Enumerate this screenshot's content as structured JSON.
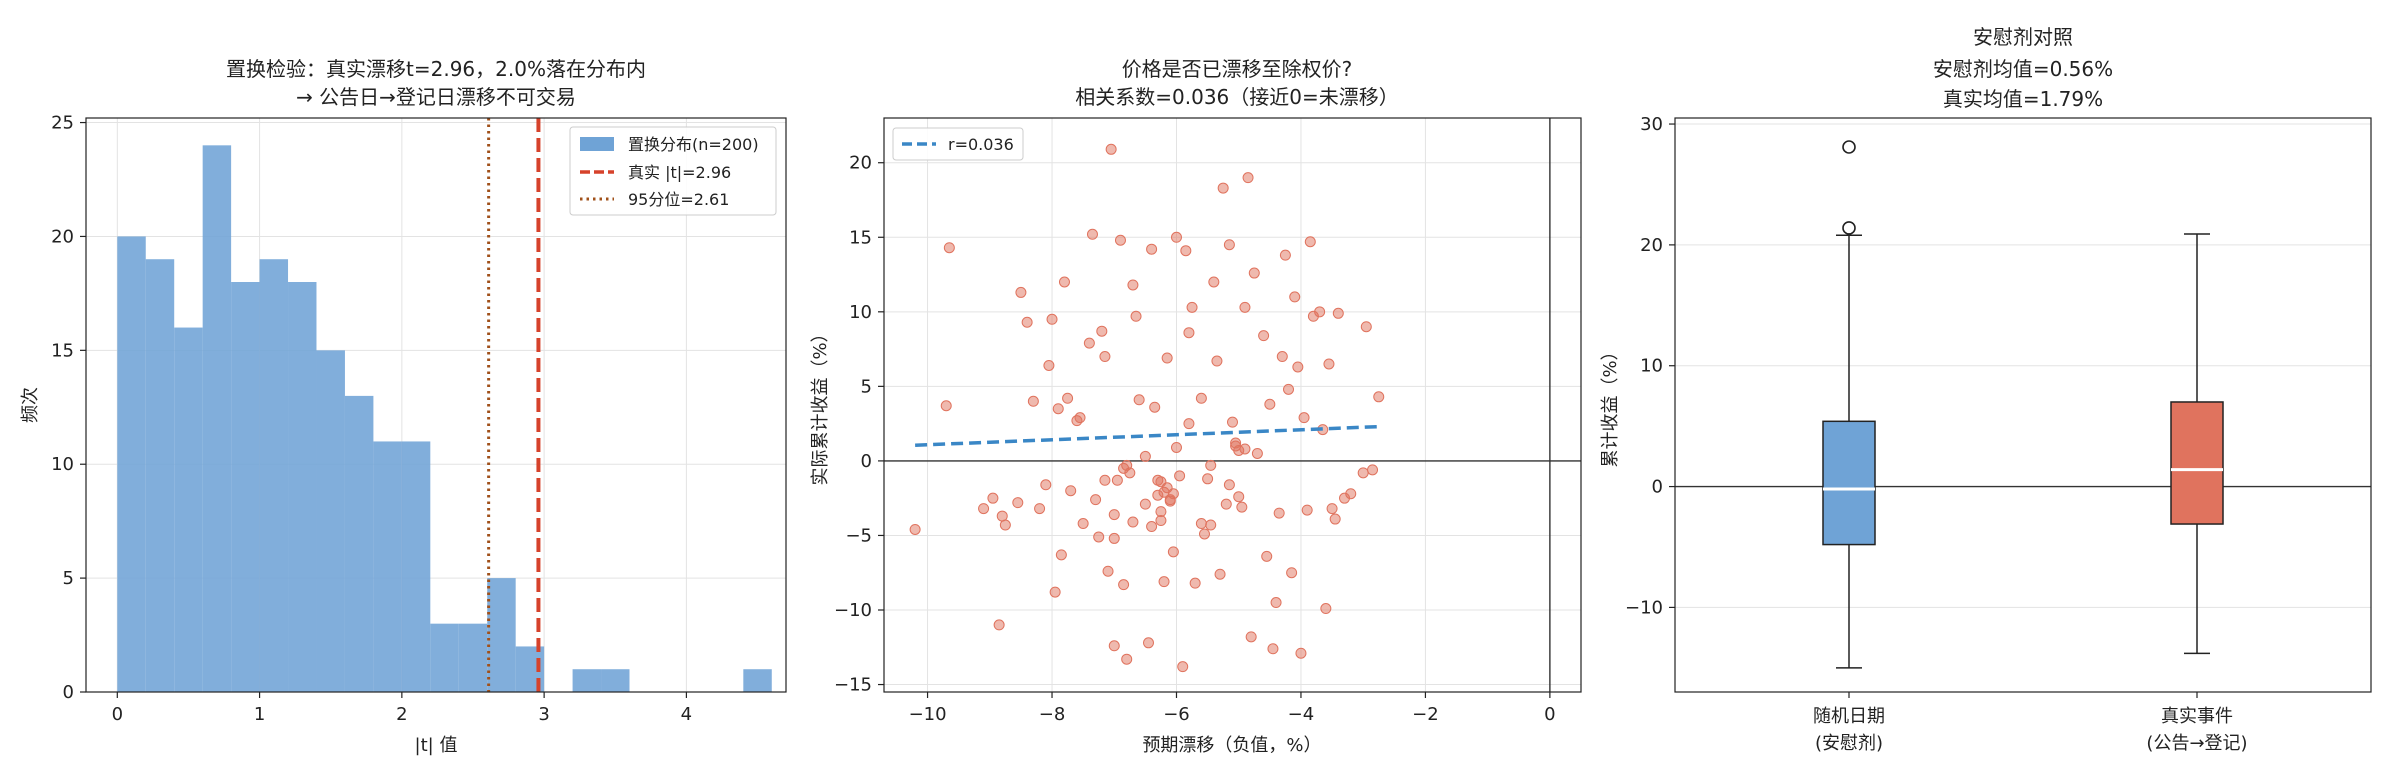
{
  "chart_data": [
    {
      "type": "bar",
      "title": "置换检验：真实漂移t=2.96，2.0%落在分布内",
      "subtitle": "→ 公告日→登记日漂移不可交易",
      "xlabel": "|t| 值",
      "ylabel": "频次",
      "xlim": [
        -0.22,
        4.7
      ],
      "ylim": [
        0,
        25.2
      ],
      "xticks": [
        0,
        1,
        2,
        3,
        4
      ],
      "yticks": [
        0,
        5,
        10,
        15,
        20,
        25
      ],
      "grid": true,
      "legend_position": "top-right",
      "bin_width": 0.2,
      "bin_start": 0.0,
      "counts": [
        20,
        19,
        16,
        24,
        18,
        19,
        18,
        15,
        13,
        11,
        11,
        3,
        3,
        5,
        2,
        0,
        1,
        1,
        0,
        0,
        0,
        0,
        1
      ],
      "bar_color": "#6fa3d6",
      "bar_label": "置换分布(n=200)",
      "lines": [
        {
          "label": "真实 |t|=2.96",
          "x": 2.96,
          "color": "#d6422b",
          "style": "dashed"
        },
        {
          "label": "95分位=2.61",
          "x": 2.61,
          "color": "#a0501a",
          "style": "dotted"
        }
      ]
    },
    {
      "type": "scatter",
      "title": "价格是否已漂移至除权价?",
      "subtitle": "相关系数=0.036（接近0=未漂移）",
      "xlabel": "预期漂移（负值，%）",
      "ylabel": "实际累计收益（%）",
      "xlim": [
        -10.7,
        0.5
      ],
      "ylim": [
        -15.5,
        23
      ],
      "xticks": [
        -10,
        -8,
        -6,
        -4,
        -2,
        0
      ],
      "yticks": [
        -15,
        -10,
        -5,
        0,
        5,
        10,
        15,
        20
      ],
      "grid": true,
      "legend_position": "top-left",
      "point_color": "#e0735e",
      "points": [
        [
          -10.2,
          -4.6
        ],
        [
          -9.7,
          3.7
        ],
        [
          -9.65,
          14.3
        ],
        [
          -9.1,
          -3.2
        ],
        [
          -8.95,
          -2.5
        ],
        [
          -8.85,
          -11.0
        ],
        [
          -8.8,
          -3.7
        ],
        [
          -8.75,
          -4.3
        ],
        [
          -8.5,
          11.3
        ],
        [
          -8.4,
          9.3
        ],
        [
          -8.3,
          4.0
        ],
        [
          -8.2,
          -3.2
        ],
        [
          -8.1,
          -1.6
        ],
        [
          -8.05,
          6.4
        ],
        [
          -8.0,
          9.5
        ],
        [
          -7.95,
          -8.8
        ],
        [
          -7.9,
          3.5
        ],
        [
          -7.85,
          -6.3
        ],
        [
          -7.8,
          12.0
        ],
        [
          -7.7,
          -2.0
        ],
        [
          -7.6,
          2.7
        ],
        [
          -7.55,
          2.9
        ],
        [
          -7.5,
          -4.2
        ],
        [
          -7.4,
          7.9
        ],
        [
          -7.35,
          15.2
        ],
        [
          -7.3,
          -2.6
        ],
        [
          -7.25,
          -5.1
        ],
        [
          -7.2,
          8.7
        ],
        [
          -7.15,
          7.0
        ],
        [
          -7.1,
          -7.4
        ],
        [
          -7.05,
          20.9
        ],
        [
          -7.0,
          -12.4
        ],
        [
          -6.95,
          -1.3
        ],
        [
          -6.9,
          14.8
        ],
        [
          -6.85,
          -8.3
        ],
        [
          -6.8,
          -13.3
        ],
        [
          -6.75,
          -0.8
        ],
        [
          -6.7,
          11.8
        ],
        [
          -6.65,
          9.7
        ],
        [
          -6.6,
          4.1
        ],
        [
          -6.5,
          -2.9
        ],
        [
          -6.45,
          -12.2
        ],
        [
          -6.4,
          14.2
        ],
        [
          -6.35,
          3.6
        ],
        [
          -6.3,
          -1.3
        ],
        [
          -6.25,
          -4.0
        ],
        [
          -6.2,
          -8.1
        ],
        [
          -6.15,
          6.9
        ],
        [
          -6.1,
          -2.7
        ],
        [
          -6.05,
          -6.1
        ],
        [
          -6.0,
          15.0
        ],
        [
          -5.95,
          -1.0
        ],
        [
          -5.9,
          -13.8
        ],
        [
          -5.85,
          14.1
        ],
        [
          -5.8,
          8.6
        ],
        [
          -5.75,
          10.3
        ],
        [
          -5.7,
          -8.2
        ],
        [
          -5.6,
          4.2
        ],
        [
          -5.55,
          -4.9
        ],
        [
          -5.5,
          -1.2
        ],
        [
          -5.45,
          -4.3
        ],
        [
          -5.4,
          12.0
        ],
        [
          -5.35,
          6.7
        ],
        [
          -5.3,
          -7.6
        ],
        [
          -5.25,
          18.3
        ],
        [
          -5.2,
          -2.9
        ],
        [
          -5.15,
          14.5
        ],
        [
          -5.1,
          2.6
        ],
        [
          -5.05,
          1.2
        ],
        [
          -5.0,
          0.7
        ],
        [
          -4.95,
          -3.1
        ],
        [
          -4.9,
          10.3
        ],
        [
          -4.85,
          19.0
        ],
        [
          -4.8,
          -11.8
        ],
        [
          -4.75,
          12.6
        ],
        [
          -4.7,
          0.5
        ],
        [
          -4.6,
          8.4
        ],
        [
          -4.55,
          -6.4
        ],
        [
          -4.5,
          3.8
        ],
        [
          -4.45,
          -12.6
        ],
        [
          -4.4,
          -9.5
        ],
        [
          -4.35,
          -3.5
        ],
        [
          -4.3,
          7.0
        ],
        [
          -4.25,
          13.8
        ],
        [
          -4.2,
          4.8
        ],
        [
          -4.15,
          -7.5
        ],
        [
          -4.1,
          11.0
        ],
        [
          -4.05,
          6.3
        ],
        [
          -4.0,
          -12.9
        ],
        [
          -3.95,
          2.9
        ],
        [
          -3.9,
          -3.3
        ],
        [
          -3.85,
          14.7
        ],
        [
          -3.8,
          9.7
        ],
        [
          -3.7,
          10.0
        ],
        [
          -3.65,
          2.1
        ],
        [
          -3.6,
          -9.9
        ],
        [
          -3.55,
          6.5
        ],
        [
          -3.5,
          -3.2
        ],
        [
          -3.45,
          -3.9
        ],
        [
          -3.4,
          9.9
        ],
        [
          -3.3,
          -2.5
        ],
        [
          -3.2,
          -2.2
        ],
        [
          -3.0,
          -0.8
        ],
        [
          -2.95,
          9.0
        ],
        [
          -2.85,
          -0.6
        ],
        [
          -2.75,
          4.3
        ],
        [
          -7.15,
          -1.3
        ],
        [
          -7.0,
          -5.2
        ],
        [
          -6.5,
          0.3
        ],
        [
          -6.2,
          -2.1
        ],
        [
          -6.1,
          -2.6
        ],
        [
          -6.0,
          0.9
        ],
        [
          -5.8,
          2.5
        ],
        [
          -5.45,
          -0.3
        ],
        [
          -4.9,
          0.8
        ],
        [
          -5.15,
          -1.6
        ],
        [
          -6.25,
          -3.4
        ],
        [
          -7.0,
          -3.6
        ],
        [
          -6.8,
          -0.3
        ],
        [
          -8.55,
          -2.8
        ],
        [
          -6.15,
          -1.8
        ],
        [
          -6.3,
          -2.3
        ],
        [
          -5.0,
          -2.4
        ],
        [
          -6.4,
          -4.4
        ],
        [
          -6.25,
          -1.4
        ],
        [
          -6.05,
          -2.2
        ],
        [
          -5.05,
          1.0
        ],
        [
          -6.85,
          -0.5
        ],
        [
          -7.75,
          4.2
        ],
        [
          -5.6,
          -4.2
        ],
        [
          -6.7,
          -4.1
        ]
      ],
      "trend": {
        "label": "r=0.036",
        "x": [
          -10.2,
          -2.75
        ],
        "y": [
          1.05,
          2.3
        ],
        "color": "#3a87c6"
      }
    },
    {
      "type": "box",
      "title": "安慰剂对照",
      "subtitle": "安慰剂均值=0.56%",
      "subtitle2": "真实均值=1.79%",
      "ylabel": "累计收益（%）",
      "ylim": [
        -17,
        30.5
      ],
      "yticks": [
        -10,
        0,
        10,
        20,
        30
      ],
      "grid": true,
      "categories": [
        {
          "line1": "随机日期",
          "line2": "(安慰剂)",
          "color": "#6fa3d6",
          "whislo": -15.0,
          "q1": -4.8,
          "med": -0.2,
          "q3": 5.4,
          "whishi": 20.8,
          "fliers": [
            21.4,
            28.1
          ]
        },
        {
          "line1": "真实事件",
          "line2": "(公告→登记)",
          "color": "#e0735e",
          "whislo": -13.8,
          "q1": -3.1,
          "med": 1.4,
          "q3": 7.0,
          "whishi": 20.9,
          "fliers": []
        }
      ]
    }
  ]
}
